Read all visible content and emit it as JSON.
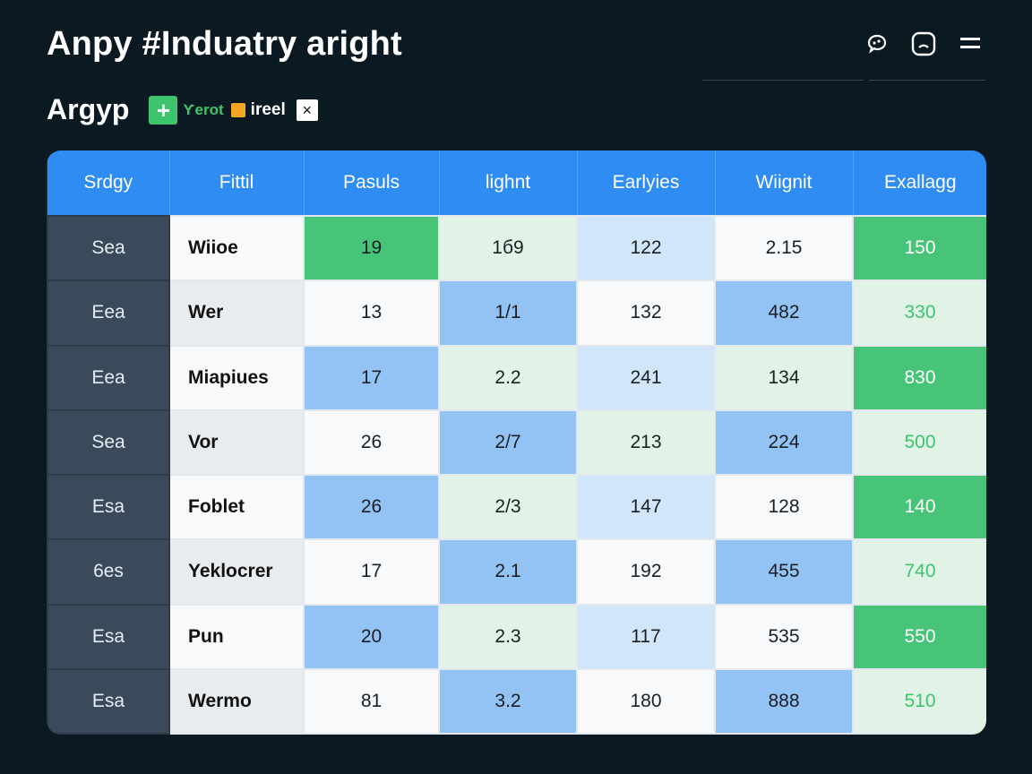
{
  "header": {
    "title": "Anpy #Induatry aright",
    "subtitle": "Argyp",
    "add_label": "+",
    "tag_green": "Ƴerot",
    "tag_white": "ireel",
    "close_label": "×"
  },
  "toolbar_icons": [
    "chat-bubble-icon",
    "face-icon",
    "menu-icon"
  ],
  "colors": {
    "background": "#0b1a22",
    "header_blue": "#2f8cf2",
    "accent_green": "#3ec46d",
    "accent_orange": "#f5a623"
  },
  "table": {
    "columns": [
      "Srdgy",
      "Fittil",
      "Pasuls",
      "lighnt",
      "Earlyies",
      "Wiignit",
      "Exallagg"
    ],
    "rows": [
      {
        "cat": "Sea",
        "name": "Wiioe",
        "v1": "19",
        "v2": "1б9",
        "v3": "122",
        "v4": "2.15",
        "v5": "150"
      },
      {
        "cat": "Eea",
        "name": "Wer",
        "v1": "13",
        "v2": "1/1",
        "v3": "132",
        "v4": "482",
        "v5": "330"
      },
      {
        "cat": "Eea",
        "name": "Miapiues",
        "v1": "17",
        "v2": "2.2",
        "v3": "241",
        "v4": "134",
        "v5": "830"
      },
      {
        "cat": "Sea",
        "name": "Vor",
        "v1": "26",
        "v2": "2/7",
        "v3": "213",
        "v4": "224",
        "v5": "500"
      },
      {
        "cat": "Esa",
        "name": "Foblet",
        "v1": "26",
        "v2": "2/3",
        "v3": "147",
        "v4": "128",
        "v5": "140"
      },
      {
        "cat": "6es",
        "name": "Yeklocrer",
        "v1": "17",
        "v2": "2.1",
        "v3": "192",
        "v4": "455",
        "v5": "740"
      },
      {
        "cat": "Esa",
        "name": "Pun",
        "v1": "20",
        "v2": "2.3",
        "v3": "117",
        "v4": "535",
        "v5": "550"
      },
      {
        "cat": "Esa",
        "name": "Wermo",
        "v1": "81",
        "v2": "3.2",
        "v3": "180",
        "v4": "888",
        "v5": "510"
      }
    ]
  }
}
